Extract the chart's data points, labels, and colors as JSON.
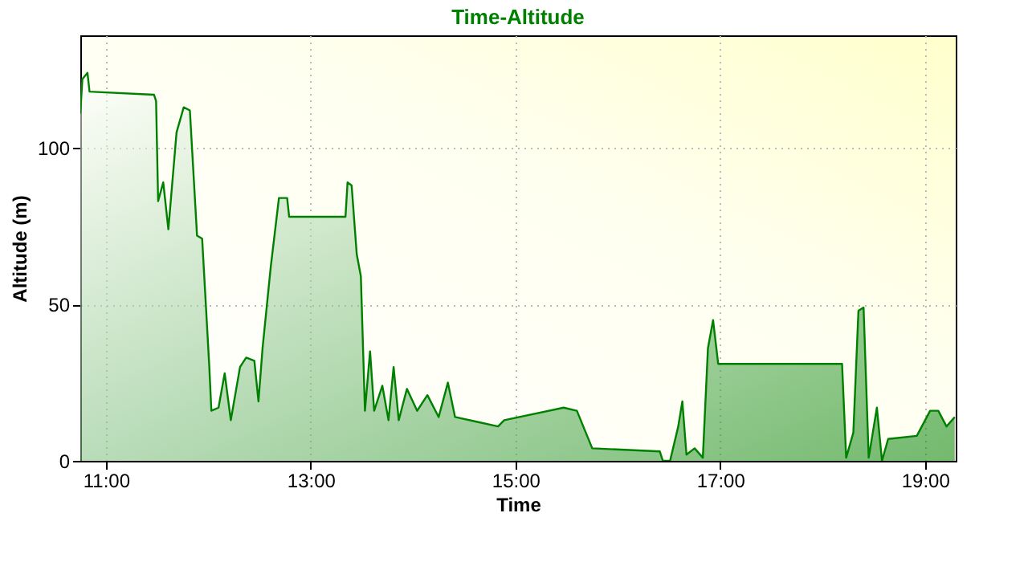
{
  "chart_data": {
    "type": "area",
    "title": "Time-Altitude",
    "xlabel": "Time",
    "ylabel": "Altitude (m)",
    "x": [
      10.75,
      10.77,
      10.82,
      10.84,
      11.47,
      11.49,
      11.51,
      11.56,
      11.61,
      11.69,
      11.76,
      11.82,
      11.89,
      11.94,
      12.01,
      12.03,
      12.1,
      12.16,
      12.22,
      12.31,
      12.37,
      12.45,
      12.49,
      12.53,
      12.61,
      12.69,
      12.77,
      12.79,
      13.34,
      13.36,
      13.4,
      13.45,
      13.49,
      13.53,
      13.58,
      13.62,
      13.7,
      13.76,
      13.81,
      13.86,
      13.94,
      14.04,
      14.14,
      14.25,
      14.34,
      14.41,
      14.62,
      14.83,
      14.89,
      15.47,
      15.6,
      15.75,
      16.41,
      16.44,
      16.51,
      16.59,
      16.63,
      16.67,
      16.75,
      16.83,
      16.88,
      16.93,
      16.98,
      18.19,
      18.23,
      18.3,
      18.35,
      18.4,
      18.45,
      18.53,
      18.58,
      18.64,
      18.92,
      19.05,
      19.13,
      19.21,
      19.29
    ],
    "series": [
      {
        "color": "#008000",
        "values": [
          111,
          122,
          124,
          118,
          117,
          115,
          83,
          89,
          74,
          105,
          113,
          112,
          72,
          71,
          30,
          16,
          17,
          28,
          13,
          30,
          33,
          32,
          19,
          36,
          62,
          84,
          84,
          78,
          78,
          89,
          88,
          66,
          59,
          16,
          35,
          16,
          24,
          13,
          30,
          13,
          23,
          16,
          21,
          14,
          25,
          14,
          12.5,
          11,
          13,
          17,
          16,
          4,
          3,
          0,
          0,
          11,
          19,
          2,
          4,
          1,
          36,
          45,
          31,
          31,
          1,
          9,
          48,
          49,
          1,
          17,
          0,
          7,
          8,
          16,
          16,
          11,
          14
        ]
      }
    ],
    "xlim": [
      10.75,
      19.3
    ],
    "xticks": [
      {
        "value": 11,
        "label": "11:00"
      },
      {
        "value": 13,
        "label": "13:00"
      },
      {
        "value": 15,
        "label": "15:00"
      },
      {
        "value": 17,
        "label": "17:00"
      },
      {
        "value": 19,
        "label": "19:00"
      }
    ],
    "ylim": [
      0,
      136
    ],
    "yticks": [
      0,
      50,
      100
    ],
    "grid": true
  }
}
